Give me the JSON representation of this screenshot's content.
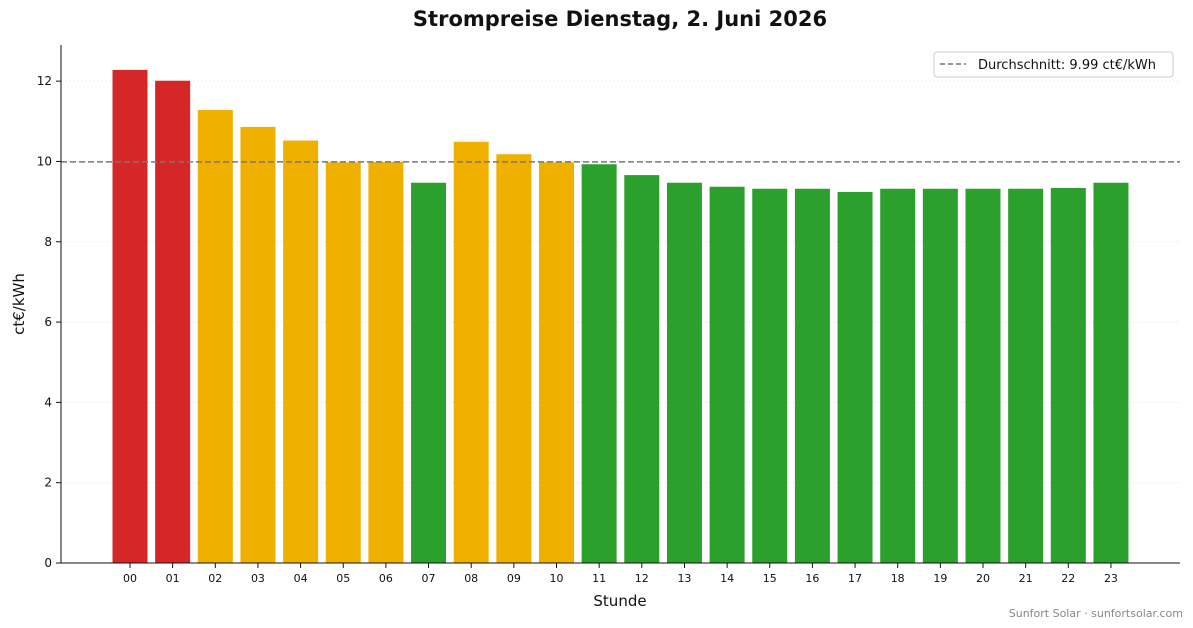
{
  "chart_data": {
    "type": "bar",
    "title": "Strompreise Dienstag, 2. Juni 2026",
    "xlabel": "Stunde",
    "ylabel": "ct€/kWh",
    "ylim": [
      0,
      12.9
    ],
    "yticks": [
      0,
      2,
      4,
      6,
      8,
      10,
      12
    ],
    "grid": "horizontal-dotted",
    "categories": [
      "00",
      "01",
      "02",
      "03",
      "04",
      "05",
      "06",
      "07",
      "08",
      "09",
      "10",
      "11",
      "12",
      "13",
      "14",
      "15",
      "16",
      "17",
      "18",
      "19",
      "20",
      "21",
      "22",
      "23"
    ],
    "values": [
      12.28,
      12.01,
      11.28,
      10.86,
      10.52,
      9.98,
      9.99,
      9.47,
      10.49,
      10.18,
      9.98,
      9.93,
      9.66,
      9.47,
      9.37,
      9.32,
      9.32,
      9.24,
      9.32,
      9.32,
      9.32,
      9.32,
      9.34,
      9.47
    ],
    "bar_colors": [
      "#d62728",
      "#d62728",
      "#f0b000",
      "#f0b000",
      "#f0b000",
      "#f0b000",
      "#f0b000",
      "#2ca02c",
      "#f0b000",
      "#f0b000",
      "#f0b000",
      "#2ca02c",
      "#2ca02c",
      "#2ca02c",
      "#2ca02c",
      "#2ca02c",
      "#2ca02c",
      "#2ca02c",
      "#2ca02c",
      "#2ca02c",
      "#2ca02c",
      "#2ca02c",
      "#2ca02c",
      "#2ca02c"
    ],
    "average": {
      "value": 9.99,
      "label": "Durchschnitt: 9.99 ct€/kWh",
      "color": "#777777"
    },
    "legend_placement": "top-right"
  },
  "footer": {
    "credit": "Sunfort Solar · sunfortsolar.com"
  }
}
